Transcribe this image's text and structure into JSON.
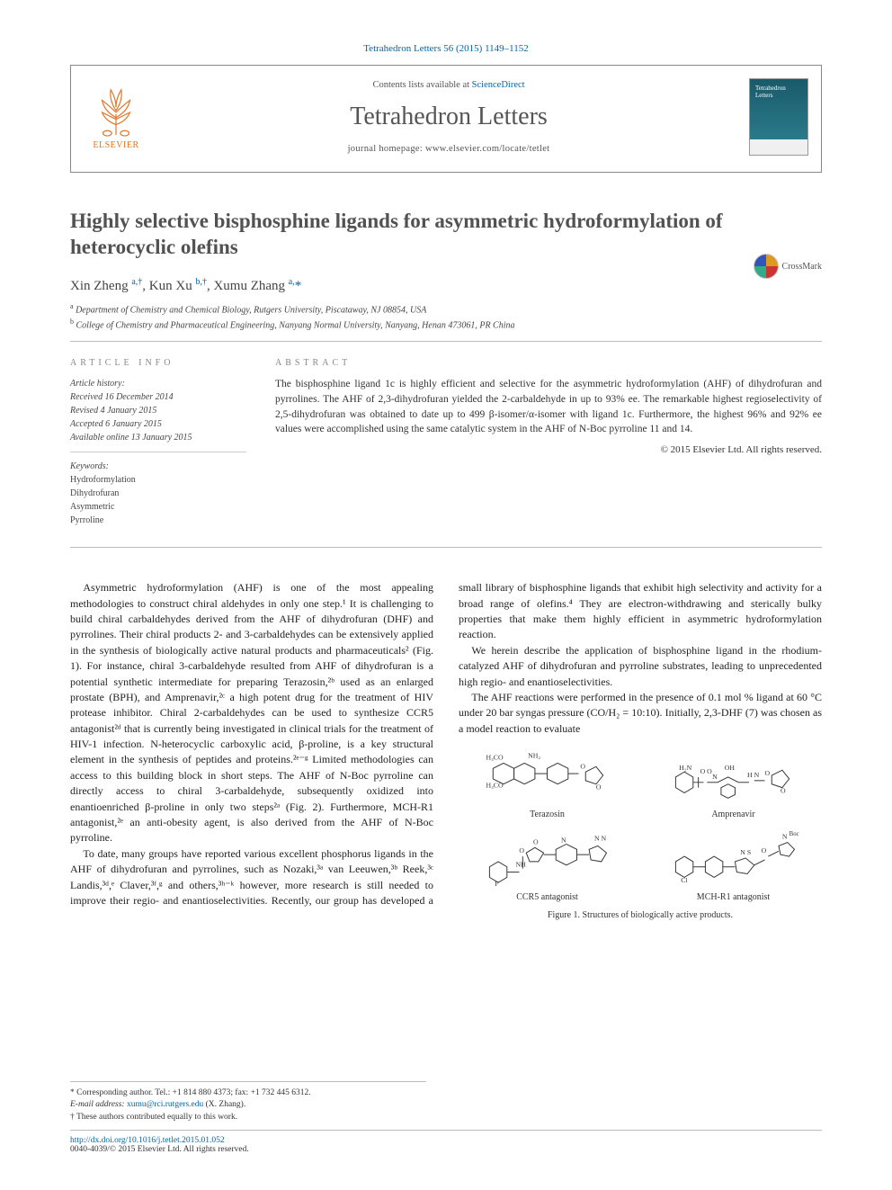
{
  "journal_ref": "Tetrahedron Letters 56 (2015) 1149–1152",
  "masthead": {
    "contents_prefix": "Contents lists available at ",
    "contents_link": "ScienceDirect",
    "journal_name": "Tetrahedron Letters",
    "homepage_prefix": "journal homepage: ",
    "homepage_url": "www.elsevier.com/locate/tetlet",
    "publisher": "ELSEVIER"
  },
  "crossmark_label": "CrossMark",
  "title": "Highly selective bisphosphine ligands for asymmetric hydroformylation of heterocyclic olefins",
  "authors_html": "Xin Zheng <sup>a,†</sup>, Kun Xu <sup>b,†</sup>, Xumu Zhang <sup>a,</sup><span class='star'>*</span>",
  "affiliations": [
    {
      "sup": "a",
      "text": "Department of Chemistry and Chemical Biology, Rutgers University, Piscataway, NJ 08854, USA"
    },
    {
      "sup": "b",
      "text": "College of Chemistry and Pharmaceutical Engineering, Nanyang Normal University, Nanyang, Henan 473061, PR China"
    }
  ],
  "info": {
    "article_info_heading": "ARTICLE INFO",
    "abstract_heading": "ABSTRACT",
    "history_label": "Article history:",
    "history": [
      "Received 16 December 2014",
      "Revised 4 January 2015",
      "Accepted 6 January 2015",
      "Available online 13 January 2015"
    ],
    "keywords_label": "Keywords:",
    "keywords": [
      "Hydroformylation",
      "Dihydrofuran",
      "Asymmetric",
      "Pyrroline"
    ]
  },
  "abstract": "The bisphosphine ligand 1c is highly efficient and selective for the asymmetric hydroformylation (AHF) of dihydrofuran and pyrrolines. The AHF of 2,3-dihydrofuran yielded the 2-carbaldehyde in up to 93% ee. The remarkable highest regioselectivity of 2,5-dihydrofuran was obtained to date up to 499 β-isomer/α-isomer with ligand 1c. Furthermore, the highest 96% and 92% ee values were accomplished using the same catalytic system in the AHF of N-Boc pyrroline 11 and 14.",
  "copyright_line": "© 2015 Elsevier Ltd. All rights reserved.",
  "body": {
    "p1": "Asymmetric hydroformylation (AHF) is one of the most appealing methodologies to construct chiral aldehydes in only one step.¹ It is challenging to build chiral carbaldehydes derived from the AHF of dihydrofuran (DHF) and pyrrolines. Their chiral products 2- and 3-carbaldehydes can be extensively applied in the synthesis of biologically active natural products and pharmaceuticals² (Fig. 1). For instance, chiral 3-carbaldehyde resulted from AHF of dihydrofuran is a potential synthetic intermediate for preparing Terazosin,²ᵇ used as an enlarged prostate (BPH), and Amprenavir,²ᶜ a high potent drug for the treatment of HIV protease inhibitor. Chiral 2-carbaldehydes can be used to synthesize CCR5 antagonist²ᵈ that is currently being investigated in clinical trials for the treatment of HIV-1 infection. N-heterocyclic carboxylic acid, β-proline, is a key structural element in the synthesis of peptides and proteins.²ᵉ⁻ᵍ Limited methodologies can access to this building block in short steps. The AHF of N-Boc pyrroline can directly access to chiral 3-carbaldehyde, subsequently oxidized into enantioenriched β-proline in only two steps²ᵃ (Fig. 2). Furthermore, MCH-R1 antagonist,²ᵉ an anti-obesity agent, is also derived from the AHF of N-Boc pyrroline.",
    "p2": "To date, many groups have reported various excellent phosphorus ligands in the AHF of dihydrofuran and pyrrolines, such as Nozaki,³ᵃ van Leeuwen,³ᵇ Reek,³ᶜ Landis,³ᵈ,ᵉ Claver,³ᶠ,ᵍ and others,³ʰ⁻ᵏ however, more research is still needed to improve their regio- and enantioselectivities. Recently, our group has developed a small library of bisphosphine ligands that exhibit high selectivity and activity for a broad range of olefins.⁴ They are electron-withdrawing and sterically bulky properties that make them highly efficient in asymmetric hydroformylation reaction.",
    "p3": "We herein describe the application of bisphosphine ligand in the rhodium-catalyzed AHF of dihydrofuran and pyrroline substrates, leading to unprecedented high regio- and enantioselectivities.",
    "p4": "The AHF reactions were performed in the presence of 0.1 mol % ligand at 60 °C under 20 bar syngas pressure (CO/H₂ = 10:10). Initially, 2,3-DHF (7) was chosen as a model reaction to evaluate"
  },
  "figure1": {
    "molecules": [
      {
        "label": "Terazosin"
      },
      {
        "label": "Amprenavir"
      },
      {
        "label": "CCR5 antagonist"
      },
      {
        "label": "MCH-R1 antagonist"
      }
    ],
    "caption": "Figure 1. Structures of biologically active products."
  },
  "footnotes": {
    "corresponding": "* Corresponding author. Tel.: +1 814 880 4373; fax: +1 732 445 6312.",
    "email_label": "E-mail address:",
    "email": "xumu@rci.rutgers.edu",
    "email_owner": "(X. Zhang).",
    "equal": "† These authors contributed equally to this work."
  },
  "footer": {
    "doi": "http://dx.doi.org/10.1016/j.tetlet.2015.01.052",
    "issn_line": "0040-4039/© 2015 Elsevier Ltd. All rights reserved."
  },
  "colors": {
    "link": "#0066aa",
    "elsevier_orange": "#e37222",
    "rule": "#bbbbbb",
    "text": "#333333",
    "heading_gray": "#888888",
    "title_gray": "#525252"
  }
}
